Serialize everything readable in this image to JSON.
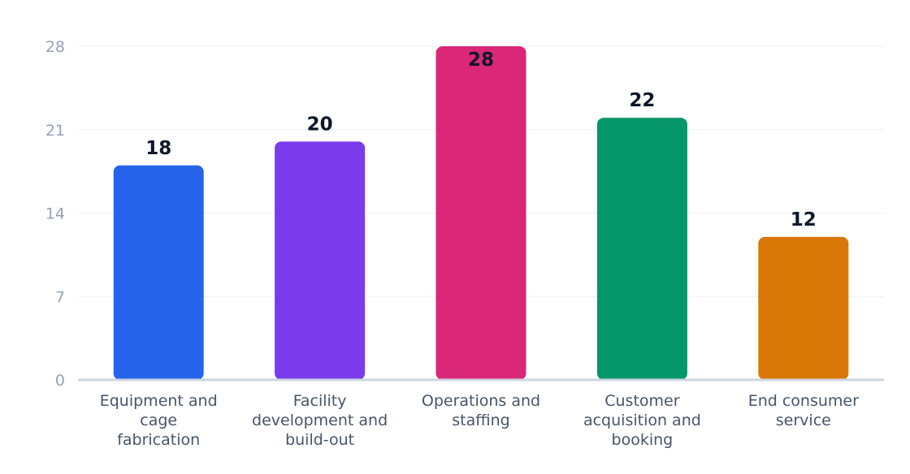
{
  "chart_data": {
    "type": "bar",
    "title": "",
    "xlabel": "",
    "ylabel": "",
    "categories": [
      "Equipment and cage fabrication",
      "Facility development and build-out",
      "Operations and staffing",
      "Customer acquisition and booking",
      "End consumer service"
    ],
    "category_lines": [
      [
        "Equipment and",
        "cage",
        "fabrication"
      ],
      [
        "Facility",
        "development and",
        "build-out"
      ],
      [
        "Operations and",
        "staffing"
      ],
      [
        "Customer",
        "acquisition and",
        "booking"
      ],
      [
        "End consumer",
        "service"
      ]
    ],
    "values": [
      18,
      20,
      28,
      22,
      12
    ],
    "data_labels": [
      "18",
      "20",
      "28",
      "22",
      "12"
    ],
    "colors": [
      "#2563eb",
      "#7c3aed",
      "#db2777",
      "#059669",
      "#d97706"
    ],
    "yticks": [
      0,
      7,
      14,
      21,
      28
    ],
    "ytick_labels": [
      "0",
      "7",
      "14",
      "21",
      "28"
    ],
    "ylim": [
      0,
      28
    ],
    "grid": true,
    "legend": "none",
    "gridline_color": "#f1f5f9",
    "axis_color": "#cbd5e1"
  }
}
